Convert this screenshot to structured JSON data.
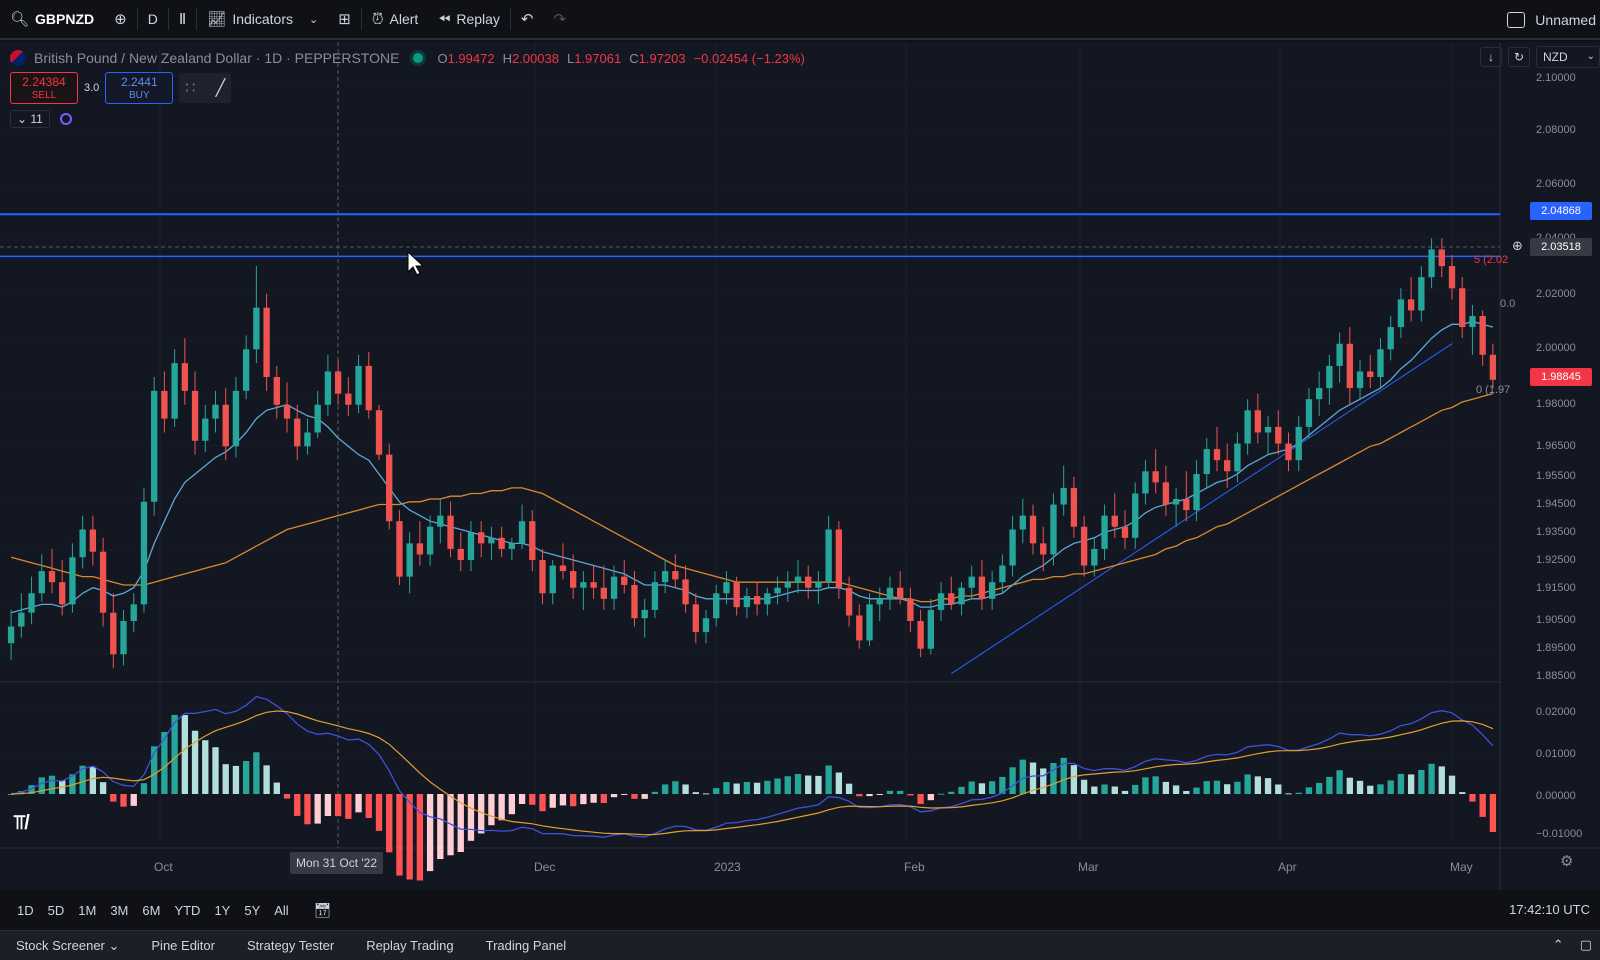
{
  "toolbar": {
    "symbol": "GBPNZD",
    "interval": "D",
    "indicators_label": "Indicators",
    "alert_label": "Alert",
    "replay_label": "Replay",
    "layout_name": "Unnamed"
  },
  "legend": {
    "title": "British Pound / New Zealand Dollar · 1D · PEPPERSTONE",
    "open_key": "O",
    "open": "1.99472",
    "high_key": "H",
    "high": "2.00038",
    "low_key": "L",
    "low": "1.97061",
    "close_key": "C",
    "close": "1.97203",
    "change": "−0.02454 (−1.23%)"
  },
  "trade": {
    "sell_price": "2.24384",
    "sell_label": "SELL",
    "spread": "3.0",
    "buy_price": "2.2441",
    "buy_label": "BUY"
  },
  "indicators_collapse": "11",
  "price_scale": {
    "currency": "NZD",
    "ticks": [
      "2.10000",
      "2.08000",
      "2.06000",
      "2.04000",
      "2.02000",
      "2.00000",
      "1.98000",
      "1.96500",
      "1.95500",
      "1.94500",
      "1.93500",
      "1.92500",
      "1.91500",
      "1.90500",
      "1.89500",
      "1.88500"
    ],
    "macd_ticks": [
      "0.02000",
      "0.01000",
      "0.00000",
      "−0.01000"
    ],
    "tag_hline": "2.04868",
    "tag_crosshair": "2.03518",
    "tag_last": "1.98845",
    "fib_label_top": "5 (2.02",
    "fib_label_mid": "0.0",
    "fib_label_bottom": "0 (1.97"
  },
  "time_axis": {
    "ticks": [
      "Oct",
      "Dec",
      "2023",
      "Feb",
      "Mar",
      "Apr",
      "May"
    ],
    "crosshair_label": "Mon 31 Oct '22"
  },
  "range_bar": {
    "ranges": [
      "1D",
      "5D",
      "1M",
      "3M",
      "6M",
      "YTD",
      "1Y",
      "5Y",
      "All"
    ],
    "clock": "17:42:10 UTC"
  },
  "tabs": [
    "Stock Screener",
    "Pine Editor",
    "Strategy Tester",
    "Replay Trading",
    "Trading Panel"
  ],
  "colors": {
    "up": "#26a69a",
    "down": "#ef5350",
    "ma_fast": "#5fa8d3",
    "ma_slow": "#d98a2c",
    "hline": "#2962ff",
    "macd": "#3f51d8",
    "signal": "#e0a030"
  },
  "chart_data": {
    "type": "candlestick",
    "title": "British Pound / New Zealand Dollar · 1D · PEPPERSTONE",
    "ylim": [
      1.88,
      2.1
    ],
    "horizontal_lines": [
      2.04868,
      2.0335
    ],
    "last_price": 1.98845,
    "candles_ohlc": [
      [
        1.894,
        1.906,
        1.888,
        1.9
      ],
      [
        1.9,
        1.912,
        1.896,
        1.905
      ],
      [
        1.905,
        1.918,
        1.901,
        1.912
      ],
      [
        1.912,
        1.926,
        1.909,
        1.92
      ],
      [
        1.92,
        1.928,
        1.912,
        1.916
      ],
      [
        1.916,
        1.924,
        1.904,
        1.908
      ],
      [
        1.908,
        1.93,
        1.905,
        1.925
      ],
      [
        1.925,
        1.94,
        1.921,
        1.935
      ],
      [
        1.935,
        1.94,
        1.922,
        1.927
      ],
      [
        1.927,
        1.932,
        1.9,
        1.905
      ],
      [
        1.905,
        1.912,
        1.885,
        1.89
      ],
      [
        1.89,
        1.906,
        1.886,
        1.902
      ],
      [
        1.902,
        1.912,
        1.898,
        1.908
      ],
      [
        1.908,
        1.95,
        1.905,
        1.945
      ],
      [
        1.945,
        1.99,
        1.94,
        1.985
      ],
      [
        1.985,
        1.992,
        1.97,
        1.975
      ],
      [
        1.975,
        2.0,
        1.972,
        1.995
      ],
      [
        1.995,
        2.004,
        1.98,
        1.985
      ],
      [
        1.985,
        1.992,
        1.962,
        1.967
      ],
      [
        1.967,
        1.98,
        1.963,
        1.975
      ],
      [
        1.975,
        1.985,
        1.97,
        1.98
      ],
      [
        1.98,
        1.986,
        1.96,
        1.965
      ],
      [
        1.965,
        1.99,
        1.961,
        1.985
      ],
      [
        1.985,
        2.005,
        1.982,
        2.0
      ],
      [
        2.0,
        2.03,
        1.995,
        2.015
      ],
      [
        2.015,
        2.02,
        1.985,
        1.99
      ],
      [
        1.99,
        1.994,
        1.975,
        1.98
      ],
      [
        1.98,
        1.988,
        1.97,
        1.975
      ],
      [
        1.975,
        1.98,
        1.96,
        1.965
      ],
      [
        1.965,
        1.975,
        1.962,
        1.97
      ],
      [
        1.97,
        1.985,
        1.968,
        1.98
      ],
      [
        1.98,
        1.998,
        1.976,
        1.992
      ],
      [
        1.992,
        1.996,
        1.98,
        1.984
      ],
      [
        1.984,
        1.99,
        1.976,
        1.98
      ],
      [
        1.98,
        1.998,
        1.977,
        1.994
      ],
      [
        1.994,
        1.999,
        1.975,
        1.978
      ],
      [
        1.978,
        1.98,
        1.96,
        1.962
      ],
      [
        1.962,
        1.966,
        1.935,
        1.938
      ],
      [
        1.938,
        1.942,
        1.915,
        1.918
      ],
      [
        1.918,
        1.934,
        1.912,
        1.93
      ],
      [
        1.93,
        1.938,
        1.922,
        1.926
      ],
      [
        1.926,
        1.94,
        1.922,
        1.936
      ],
      [
        1.936,
        1.946,
        1.93,
        1.94
      ],
      [
        1.94,
        1.945,
        1.925,
        1.928
      ],
      [
        1.928,
        1.934,
        1.92,
        1.924
      ],
      [
        1.924,
        1.938,
        1.92,
        1.934
      ],
      [
        1.934,
        1.938,
        1.925,
        1.93
      ],
      [
        1.93,
        1.936,
        1.924,
        1.932
      ],
      [
        1.932,
        1.936,
        1.925,
        1.928
      ],
      [
        1.928,
        1.932,
        1.924,
        1.93
      ],
      [
        1.93,
        1.944,
        1.928,
        1.938
      ],
      [
        1.938,
        1.942,
        1.92,
        1.924
      ],
      [
        1.924,
        1.928,
        1.908,
        1.912
      ],
      [
        1.912,
        1.924,
        1.908,
        1.922
      ],
      [
        1.922,
        1.93,
        1.917,
        1.92
      ],
      [
        1.92,
        1.926,
        1.91,
        1.914
      ],
      [
        1.914,
        1.92,
        1.906,
        1.916
      ],
      [
        1.916,
        1.922,
        1.91,
        1.914
      ],
      [
        1.914,
        1.922,
        1.906,
        1.91
      ],
      [
        1.91,
        1.922,
        1.906,
        1.918
      ],
      [
        1.918,
        1.924,
        1.912,
        1.915
      ],
      [
        1.915,
        1.92,
        1.9,
        1.903
      ],
      [
        1.903,
        1.91,
        1.896,
        1.906
      ],
      [
        1.906,
        1.92,
        1.903,
        1.916
      ],
      [
        1.916,
        1.924,
        1.912,
        1.92
      ],
      [
        1.92,
        1.926,
        1.914,
        1.917
      ],
      [
        1.917,
        1.922,
        1.905,
        1.908
      ],
      [
        1.908,
        1.912,
        1.894,
        1.898
      ],
      [
        1.898,
        1.906,
        1.894,
        1.903
      ],
      [
        1.903,
        1.915,
        1.9,
        1.912
      ],
      [
        1.912,
        1.92,
        1.908,
        1.916
      ],
      [
        1.916,
        1.918,
        1.904,
        1.907
      ],
      [
        1.907,
        1.914,
        1.903,
        1.911
      ],
      [
        1.911,
        1.916,
        1.904,
        1.908
      ],
      [
        1.908,
        1.914,
        1.904,
        1.912
      ],
      [
        1.912,
        1.918,
        1.908,
        1.914
      ],
      [
        1.914,
        1.92,
        1.909,
        1.916
      ],
      [
        1.916,
        1.924,
        1.912,
        1.918
      ],
      [
        1.918,
        1.922,
        1.91,
        1.914
      ],
      [
        1.914,
        1.92,
        1.908,
        1.916
      ],
      [
        1.916,
        1.94,
        1.914,
        1.935
      ],
      [
        1.935,
        1.938,
        1.91,
        1.914
      ],
      [
        1.914,
        1.918,
        1.9,
        1.904
      ],
      [
        1.904,
        1.908,
        1.892,
        1.895
      ],
      [
        1.895,
        1.912,
        1.893,
        1.908
      ],
      [
        1.908,
        1.914,
        1.902,
        1.91
      ],
      [
        1.91,
        1.918,
        1.906,
        1.914
      ],
      [
        1.914,
        1.92,
        1.908,
        1.91
      ],
      [
        1.91,
        1.914,
        1.898,
        1.902
      ],
      [
        1.902,
        1.906,
        1.889,
        1.892
      ],
      [
        1.892,
        1.91,
        1.89,
        1.906
      ],
      [
        1.906,
        1.916,
        1.902,
        1.912
      ],
      [
        1.912,
        1.918,
        1.906,
        1.908
      ],
      [
        1.908,
        1.916,
        1.904,
        1.914
      ],
      [
        1.914,
        1.922,
        1.91,
        1.918
      ],
      [
        1.918,
        1.924,
        1.906,
        1.91
      ],
      [
        1.91,
        1.92,
        1.906,
        1.916
      ],
      [
        1.916,
        1.926,
        1.912,
        1.922
      ],
      [
        1.922,
        1.94,
        1.918,
        1.935
      ],
      [
        1.935,
        1.946,
        1.93,
        1.94
      ],
      [
        1.94,
        1.944,
        1.926,
        1.93
      ],
      [
        1.93,
        1.936,
        1.92,
        1.926
      ],
      [
        1.926,
        1.948,
        1.922,
        1.944
      ],
      [
        1.944,
        1.958,
        1.94,
        1.95
      ],
      [
        1.95,
        1.954,
        1.932,
        1.936
      ],
      [
        1.936,
        1.94,
        1.918,
        1.922
      ],
      [
        1.922,
        1.932,
        1.918,
        1.928
      ],
      [
        1.928,
        1.944,
        1.924,
        1.94
      ],
      [
        1.94,
        1.948,
        1.932,
        1.936
      ],
      [
        1.936,
        1.942,
        1.928,
        1.932
      ],
      [
        1.932,
        1.952,
        1.928,
        1.948
      ],
      [
        1.948,
        1.96,
        1.944,
        1.956
      ],
      [
        1.956,
        1.964,
        1.948,
        1.952
      ],
      [
        1.952,
        1.958,
        1.94,
        1.944
      ],
      [
        1.944,
        1.95,
        1.936,
        1.946
      ],
      [
        1.946,
        1.956,
        1.938,
        1.942
      ],
      [
        1.942,
        1.96,
        1.938,
        1.955
      ],
      [
        1.955,
        1.968,
        1.95,
        1.964
      ],
      [
        1.964,
        1.972,
        1.956,
        1.96
      ],
      [
        1.96,
        1.966,
        1.95,
        1.956
      ],
      [
        1.956,
        1.97,
        1.952,
        1.966
      ],
      [
        1.966,
        1.982,
        1.962,
        1.978
      ],
      [
        1.978,
        1.984,
        1.966,
        1.97
      ],
      [
        1.97,
        1.976,
        1.962,
        1.972
      ],
      [
        1.972,
        1.978,
        1.962,
        1.966
      ],
      [
        1.966,
        1.97,
        1.956,
        1.96
      ],
      [
        1.96,
        1.976,
        1.956,
        1.972
      ],
      [
        1.972,
        1.986,
        1.968,
        1.982
      ],
      [
        1.982,
        1.992,
        1.976,
        1.986
      ],
      [
        1.986,
        1.998,
        1.98,
        1.994
      ],
      [
        1.994,
        2.006,
        1.988,
        2.002
      ],
      [
        2.002,
        2.008,
        1.98,
        1.986
      ],
      [
        1.986,
        1.996,
        1.982,
        1.992
      ],
      [
        1.992,
        1.998,
        1.986,
        1.99
      ],
      [
        1.99,
        2.004,
        1.986,
        2.0
      ],
      [
        2.0,
        2.012,
        1.996,
        2.008
      ],
      [
        2.008,
        2.022,
        2.004,
        2.018
      ],
      [
        2.018,
        2.026,
        2.01,
        2.014
      ],
      [
        2.014,
        2.03,
        2.01,
        2.026
      ],
      [
        2.026,
        2.04,
        2.022,
        2.036
      ],
      [
        2.036,
        2.04,
        2.026,
        2.03
      ],
      [
        2.03,
        2.034,
        2.018,
        2.022
      ],
      [
        2.022,
        2.026,
        2.004,
        2.008
      ],
      [
        2.008,
        2.016,
        1.998,
        2.012
      ],
      [
        2.012,
        2.014,
        1.994,
        1.998
      ],
      [
        1.998,
        2.002,
        1.986,
        1.989
      ]
    ],
    "ma_fast": [
      1.905,
      1.906,
      1.907,
      1.908,
      1.908,
      1.907,
      1.909,
      1.912,
      1.914,
      1.913,
      1.911,
      1.912,
      1.914,
      1.92,
      1.93,
      1.938,
      1.946,
      1.952,
      1.955,
      1.958,
      1.961,
      1.963,
      1.966,
      1.97,
      1.975,
      1.978,
      1.979,
      1.98,
      1.978,
      1.976,
      1.975,
      1.972,
      1.968,
      1.965,
      1.962,
      1.96,
      1.955,
      1.95,
      1.945,
      1.942,
      1.94,
      1.938,
      1.937,
      1.936,
      1.935,
      1.934,
      1.933,
      1.932,
      1.931,
      1.93,
      1.93,
      1.929,
      1.927,
      1.926,
      1.925,
      1.924,
      1.923,
      1.922,
      1.921,
      1.92,
      1.919,
      1.917,
      1.915,
      1.915,
      1.915,
      1.914,
      1.913,
      1.911,
      1.91,
      1.91,
      1.91,
      1.91,
      1.91,
      1.91,
      1.91,
      1.911,
      1.912,
      1.913,
      1.913,
      1.913,
      1.914,
      1.914,
      1.913,
      1.911,
      1.91,
      1.91,
      1.91,
      1.91,
      1.909,
      1.907,
      1.907,
      1.908,
      1.908,
      1.909,
      1.91,
      1.91,
      1.911,
      1.912,
      1.915,
      1.918,
      1.92,
      1.922,
      1.925,
      1.928,
      1.93,
      1.931,
      1.932,
      1.934,
      1.935,
      1.936,
      1.938,
      1.941,
      1.943,
      1.944,
      1.945,
      1.946,
      1.948,
      1.95,
      1.952,
      1.953,
      1.955,
      1.958,
      1.96,
      1.962,
      1.963,
      1.964,
      1.966,
      1.969,
      1.972,
      1.975,
      1.978,
      1.98,
      1.982,
      1.984,
      1.986,
      1.989,
      1.993,
      1.996,
      2.0,
      2.004,
      2.007,
      2.009,
      2.009,
      2.01,
      2.009,
      2.008
    ],
    "ma_slow": [
      1.925,
      1.924,
      1.923,
      1.922,
      1.921,
      1.92,
      1.919,
      1.918,
      1.918,
      1.917,
      1.916,
      1.915,
      1.915,
      1.915,
      1.916,
      1.917,
      1.918,
      1.919,
      1.92,
      1.921,
      1.922,
      1.923,
      1.925,
      1.927,
      1.929,
      1.931,
      1.933,
      1.935,
      1.936,
      1.937,
      1.938,
      1.939,
      1.94,
      1.941,
      1.942,
      1.943,
      1.944,
      1.944,
      1.944,
      1.945,
      1.945,
      1.946,
      1.946,
      1.947,
      1.947,
      1.948,
      1.948,
      1.949,
      1.949,
      1.95,
      1.95,
      1.949,
      1.948,
      1.946,
      1.944,
      1.942,
      1.94,
      1.938,
      1.936,
      1.934,
      1.932,
      1.93,
      1.928,
      1.926,
      1.924,
      1.922,
      1.921,
      1.92,
      1.919,
      1.918,
      1.917,
      1.916,
      1.916,
      1.916,
      1.916,
      1.916,
      1.916,
      1.916,
      1.916,
      1.916,
      1.916,
      1.916,
      1.915,
      1.914,
      1.913,
      1.912,
      1.911,
      1.91,
      1.91,
      1.909,
      1.909,
      1.91,
      1.91,
      1.911,
      1.911,
      1.912,
      1.913,
      1.914,
      1.915,
      1.916,
      1.917,
      1.917,
      1.918,
      1.918,
      1.919,
      1.919,
      1.92,
      1.921,
      1.922,
      1.923,
      1.924,
      1.925,
      1.926,
      1.928,
      1.929,
      1.931,
      1.932,
      1.934,
      1.936,
      1.937,
      1.939,
      1.941,
      1.943,
      1.945,
      1.947,
      1.949,
      1.951,
      1.953,
      1.955,
      1.957,
      1.959,
      1.961,
      1.963,
      1.965,
      1.966,
      1.968,
      1.97,
      1.972,
      1.974,
      1.976,
      1.978,
      1.979,
      1.981,
      1.982,
      1.983,
      1.984
    ]
  }
}
